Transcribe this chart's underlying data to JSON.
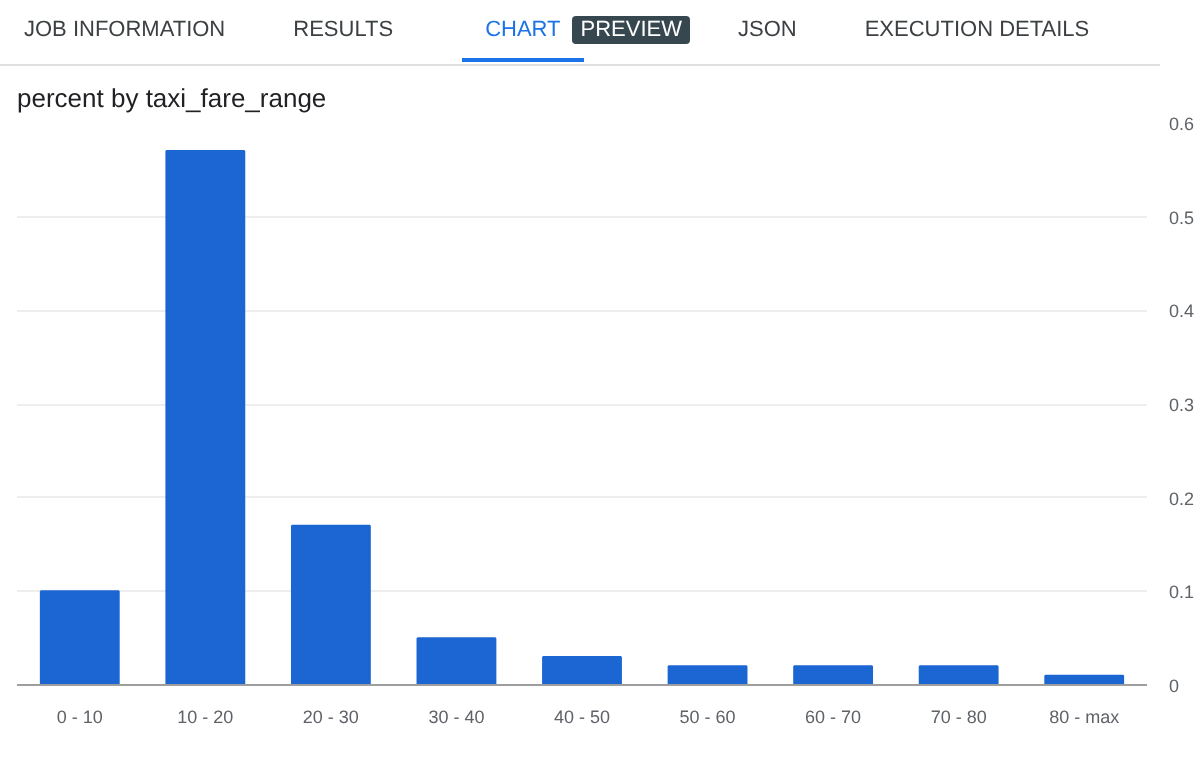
{
  "chart_data": {
    "type": "bar",
    "title": "percent by taxi_fare_range",
    "annotations": [
      "JOB INFORMATION",
      "RESULTS",
      "CHART",
      "PREVIEW",
      "JSON",
      "EXECUTION DETAILS"
    ],
    "categories": [
      "0 - 10",
      "10 - 20",
      "20 - 30",
      "30 - 40",
      "40 - 50",
      "50 - 60",
      "60 - 70",
      "70 - 80",
      "80 - max"
    ],
    "values": [
      0.1,
      0.57,
      0.17,
      0.05,
      0.03,
      0.02,
      0.02,
      0.02,
      0.01
    ],
    "color": "#1b66d2",
    "ylim": [
      0,
      0.6
    ],
    "yticks": [
      0,
      0.1,
      0.2,
      0.3,
      0.4,
      0.5,
      0.6
    ],
    "grid": "y"
  }
}
